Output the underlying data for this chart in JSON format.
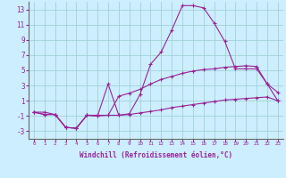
{
  "xlabel": "Windchill (Refroidissement éolien,°C)",
  "x": [
    0,
    1,
    2,
    3,
    4,
    5,
    6,
    7,
    8,
    9,
    10,
    11,
    12,
    13,
    14,
    15,
    16,
    17,
    18,
    19,
    20,
    21,
    22,
    23
  ],
  "line1_y": [
    -0.5,
    -0.8,
    -0.8,
    -2.5,
    -2.6,
    -0.9,
    -1.0,
    -0.9,
    -0.9,
    -0.8,
    -0.6,
    -0.4,
    -0.2,
    0.1,
    0.3,
    0.5,
    0.7,
    0.9,
    1.1,
    1.2,
    1.3,
    1.4,
    1.5,
    1.0
  ],
  "line2_y": [
    -0.5,
    -0.8,
    -0.8,
    -2.5,
    -2.6,
    -0.9,
    -1.0,
    3.2,
    -0.9,
    -0.7,
    1.8,
    5.8,
    7.4,
    10.3,
    13.5,
    13.5,
    13.2,
    11.2,
    8.8,
    5.2,
    5.2,
    5.2,
    3.2,
    2.1
  ],
  "line3_y": [
    -0.5,
    -0.5,
    -0.8,
    -2.5,
    -2.6,
    -0.9,
    -0.9,
    -0.9,
    1.6,
    2.0,
    2.5,
    3.2,
    3.8,
    4.2,
    4.6,
    4.9,
    5.1,
    5.2,
    5.4,
    5.5,
    5.6,
    5.5,
    3.2,
    1.0
  ],
  "line_color": "#992299",
  "bg_color": "#cceeff",
  "grid_color": "#99cccc",
  "ylim": [
    -4,
    14
  ],
  "yticks": [
    -3,
    -1,
    1,
    3,
    5,
    7,
    9,
    11,
    13
  ],
  "xticks": [
    0,
    1,
    2,
    3,
    4,
    5,
    6,
    7,
    8,
    9,
    10,
    11,
    12,
    13,
    14,
    15,
    16,
    17,
    18,
    19,
    20,
    21,
    22,
    23
  ]
}
